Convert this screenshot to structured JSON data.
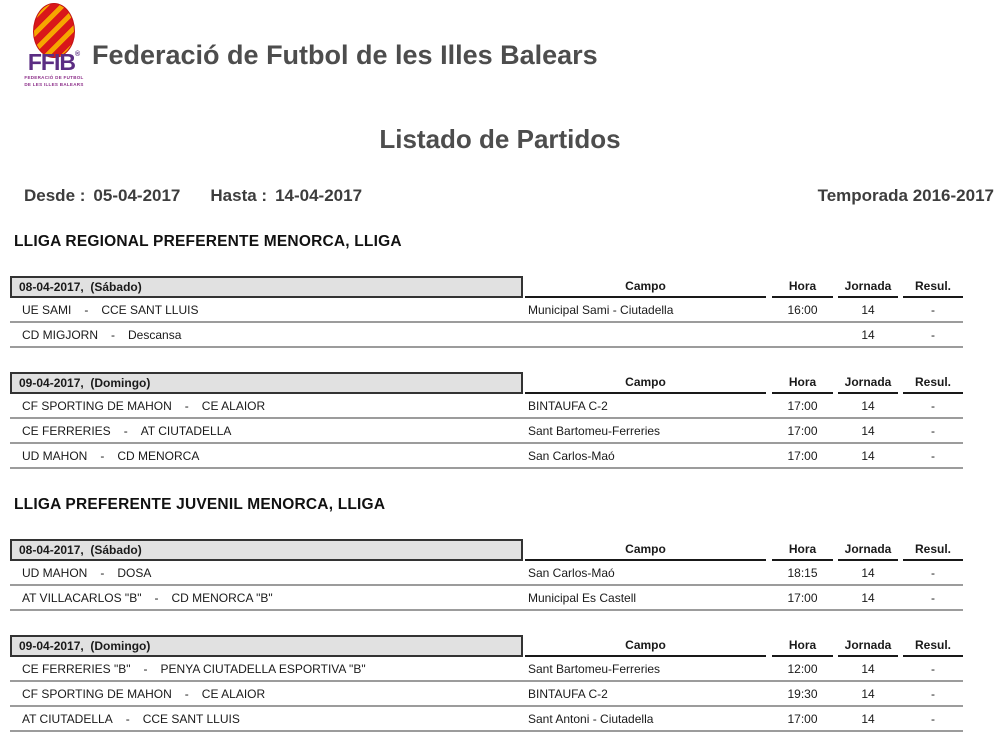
{
  "header": {
    "logo": {
      "acronym": "FFIB",
      "registered": "®",
      "subtitle_line1": "FEDERACIÓ DE FUTBOL",
      "subtitle_line2": "DE LES ILLES BALEARS",
      "ball_red": "#d9171a",
      "stripe_yellow": "#f6a600",
      "purple": "#5b2d83"
    },
    "title": "Federació de Futbol de les Illes Balears"
  },
  "page_title": "Listado de Partidos",
  "filters": {
    "desde_label": "Desde :",
    "desde_value": "05-04-2017",
    "hasta_label": "Hasta :",
    "hasta_value": "14-04-2017",
    "season": "Temporada 2016-2017"
  },
  "columns": {
    "campo": "Campo",
    "hora": "Hora",
    "jornada": "Jornada",
    "resul": "Resul."
  },
  "sections": [
    {
      "title": "LLIGA REGIONAL PREFERENTE MENORCA, LLIGA",
      "tables": [
        {
          "date_header": "08-04-2017,  (Sábado)",
          "rows": [
            {
              "home": "UE SAMI",
              "sep": "-",
              "away": "CCE SANT LLUIS",
              "campo": "Municipal Sami - Ciutadella",
              "hora": "16:00",
              "jornada": "14",
              "resul": "-"
            },
            {
              "home": "CD MIGJORN",
              "sep": "-",
              "away": "Descansa",
              "campo": "",
              "hora": "",
              "jornada": "14",
              "resul": "-"
            }
          ]
        },
        {
          "date_header": "09-04-2017,  (Domingo)",
          "rows": [
            {
              "home": "CF SPORTING DE MAHON",
              "sep": "-",
              "away": "CE ALAIOR",
              "campo": "BINTAUFA C-2",
              "hora": "17:00",
              "jornada": "14",
              "resul": "-"
            },
            {
              "home": "CE FERRERIES",
              "sep": "-",
              "away": "AT CIUTADELLA",
              "campo": "Sant Bartomeu-Ferreries",
              "hora": "17:00",
              "jornada": "14",
              "resul": "-"
            },
            {
              "home": "UD MAHON",
              "sep": "-",
              "away": "CD MENORCA",
              "campo": "San Carlos-Maó",
              "hora": "17:00",
              "jornada": "14",
              "resul": "-"
            }
          ]
        }
      ]
    },
    {
      "title": "LLIGA PREFERENTE JUVENIL MENORCA, LLIGA",
      "tables": [
        {
          "date_header": "08-04-2017,  (Sábado)",
          "rows": [
            {
              "home": "UD MAHON",
              "sep": "-",
              "away": "DOSA",
              "campo": "San Carlos-Maó",
              "hora": "18:15",
              "jornada": "14",
              "resul": "-"
            },
            {
              "home": "AT VILLACARLOS \"B\"",
              "sep": "-",
              "away": "CD MENORCA \"B\"",
              "campo": "Municipal Es Castell",
              "hora": "17:00",
              "jornada": "14",
              "resul": "-"
            }
          ]
        },
        {
          "date_header": "09-04-2017,  (Domingo)",
          "rows": [
            {
              "home": "CE FERRERIES \"B\"",
              "sep": "-",
              "away": "PENYA CIUTADELLA ESPORTIVA \"B\"",
              "campo": "Sant Bartomeu-Ferreries",
              "hora": "12:00",
              "jornada": "14",
              "resul": "-"
            },
            {
              "home": "CF SPORTING DE MAHON",
              "sep": "-",
              "away": "CE ALAIOR",
              "campo": "BINTAUFA C-2",
              "hora": "19:30",
              "jornada": "14",
              "resul": "-"
            },
            {
              "home": "AT CIUTADELLA",
              "sep": "-",
              "away": "CCE SANT LLUIS",
              "campo": "Sant Antoni - Ciutadella",
              "hora": "17:00",
              "jornada": "14",
              "resul": "-"
            }
          ]
        }
      ]
    }
  ]
}
